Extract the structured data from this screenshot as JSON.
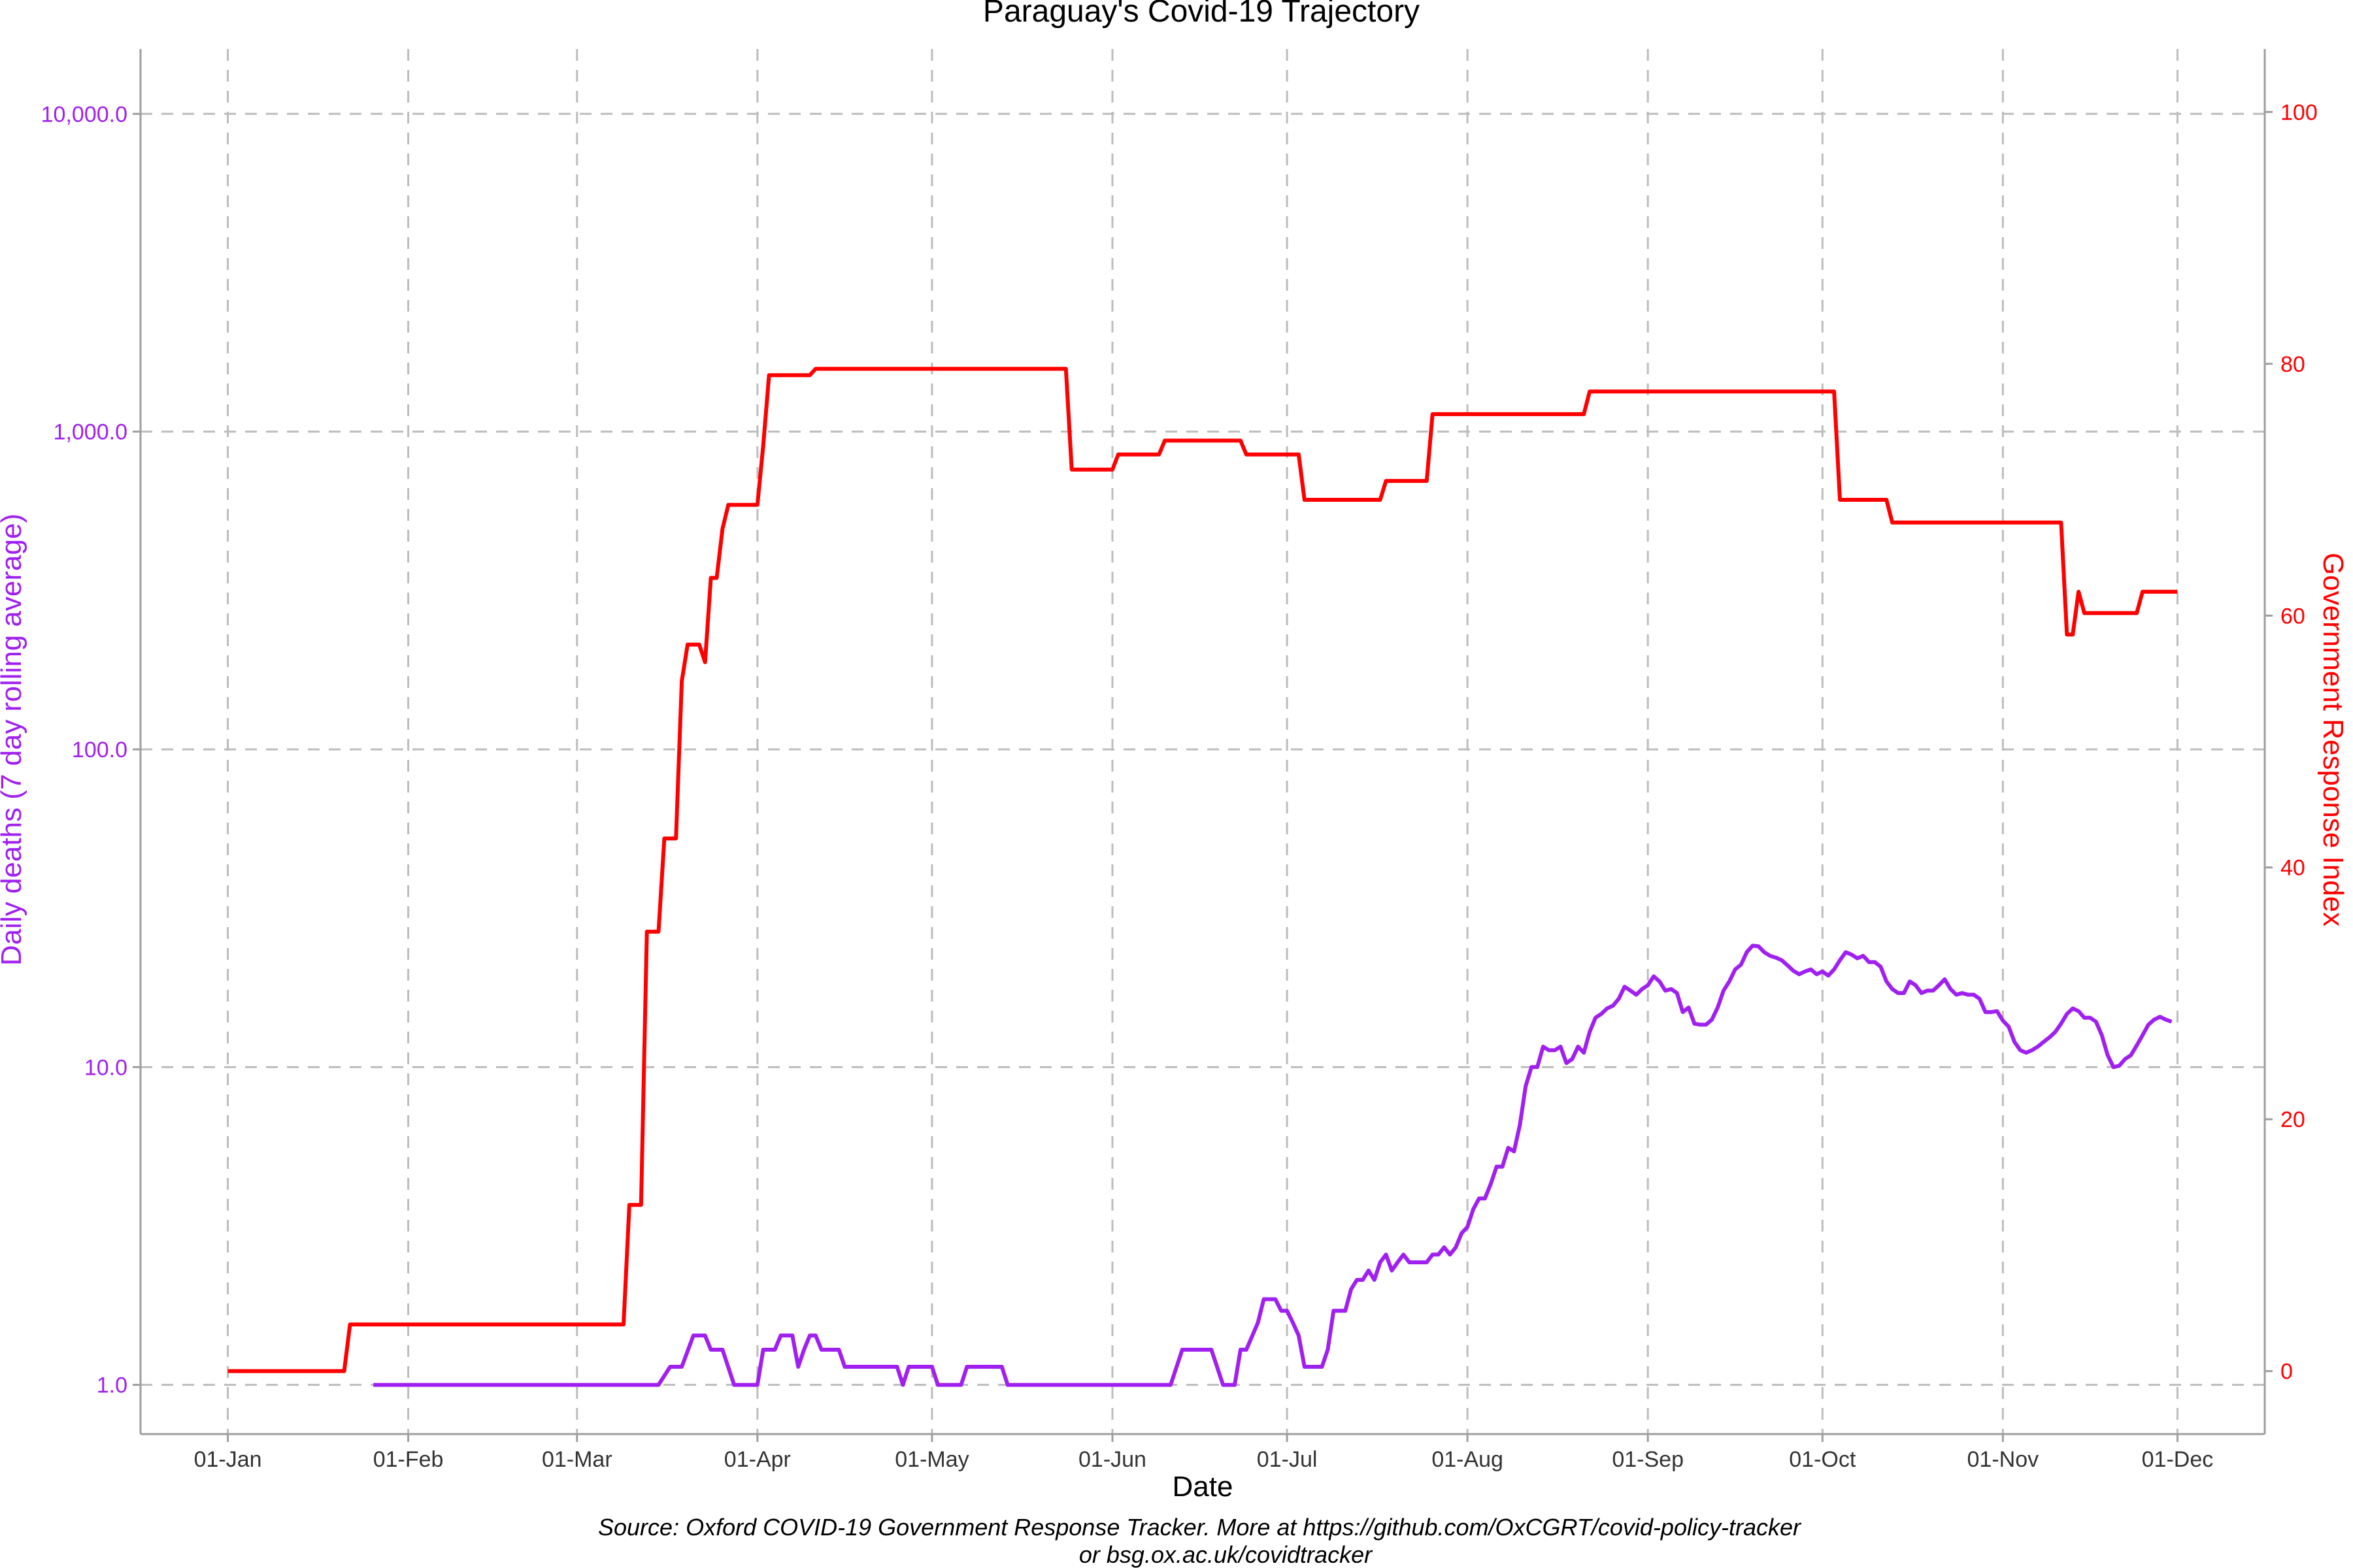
{
  "chart_data": {
    "type": "line",
    "title": "Paraguay's Covid-19 Trajectory",
    "xlabel": "Date",
    "ylabel_left": "Daily deaths (7 day rolling average)",
    "ylabel_right": "Government Response Index",
    "caption_line1": "Source: Oxford COVID-19 Government Response Tracker. More at https://github.com/OxCGRT/covid-policy-tracker",
    "caption_line2": "or bsg.ox.ac.uk/covidtracker",
    "x_ticks": [
      "01-Jan",
      "01-Feb",
      "01-Mar",
      "01-Apr",
      "01-May",
      "01-Jun",
      "01-Jul",
      "01-Aug",
      "01-Sep",
      "01-Oct",
      "01-Nov",
      "01-Dec"
    ],
    "y_left_scale": "log10",
    "y_left_ticks": [
      "1.0",
      "10.0",
      "100.0",
      "1,000.0",
      "10,000.0"
    ],
    "y_left_lim": [
      0.7,
      16000
    ],
    "y_right_ticks": [
      "0",
      "20",
      "40",
      "60",
      "80",
      "100"
    ],
    "y_right_lim": [
      -5,
      105
    ],
    "grid": true,
    "colors": {
      "deaths": "#a020f0",
      "response": "#ff0000",
      "grid": "#bdbdbd",
      "axis": "#9e9e9e"
    },
    "series": [
      {
        "name": "Daily deaths (7 day rolling average)",
        "axis": "left",
        "color": "#a020f0",
        "points": [
          [
            "2020-01-26",
            1.0
          ],
          [
            "2020-03-15",
            1.0
          ],
          [
            "2020-03-17",
            1.14
          ],
          [
            "2020-03-19",
            1.14
          ],
          [
            "2020-03-21",
            1.43
          ],
          [
            "2020-03-23",
            1.43
          ],
          [
            "2020-03-24",
            1.29
          ],
          [
            "2020-03-26",
            1.29
          ],
          [
            "2020-03-28",
            1.0
          ],
          [
            "2020-04-01",
            1.0
          ],
          [
            "2020-04-02",
            1.29
          ],
          [
            "2020-04-04",
            1.29
          ],
          [
            "2020-04-05",
            1.43
          ],
          [
            "2020-04-07",
            1.43
          ],
          [
            "2020-04-08",
            1.14
          ],
          [
            "2020-04-09",
            1.29
          ],
          [
            "2020-04-10",
            1.43
          ],
          [
            "2020-04-11",
            1.43
          ],
          [
            "2020-04-12",
            1.29
          ],
          [
            "2020-04-15",
            1.29
          ],
          [
            "2020-04-16",
            1.14
          ],
          [
            "2020-04-25",
            1.14
          ],
          [
            "2020-04-26",
            1.0
          ],
          [
            "2020-04-27",
            1.14
          ],
          [
            "2020-05-01",
            1.14
          ],
          [
            "2020-05-02",
            1.0
          ],
          [
            "2020-05-06",
            1.0
          ],
          [
            "2020-05-07",
            1.14
          ],
          [
            "2020-05-13",
            1.14
          ],
          [
            "2020-05-14",
            1.0
          ],
          [
            "2020-05-30",
            1.0
          ],
          [
            "2020-06-11",
            1.0
          ],
          [
            "2020-06-13",
            1.29
          ],
          [
            "2020-06-18",
            1.29
          ],
          [
            "2020-06-20",
            1.0
          ],
          [
            "2020-06-22",
            1.0
          ],
          [
            "2020-06-23",
            1.29
          ],
          [
            "2020-06-24",
            1.29
          ],
          [
            "2020-06-26",
            1.57
          ],
          [
            "2020-06-27",
            1.86
          ],
          [
            "2020-06-29",
            1.86
          ],
          [
            "2020-06-30",
            1.71
          ],
          [
            "2020-07-01",
            1.71
          ],
          [
            "2020-07-02",
            1.57
          ],
          [
            "2020-07-03",
            1.43
          ],
          [
            "2020-07-04",
            1.14
          ],
          [
            "2020-07-07",
            1.14
          ],
          [
            "2020-07-08",
            1.29
          ],
          [
            "2020-07-09",
            1.71
          ],
          [
            "2020-07-11",
            1.71
          ],
          [
            "2020-07-12",
            2.0
          ],
          [
            "2020-07-13",
            2.14
          ],
          [
            "2020-07-14",
            2.14
          ],
          [
            "2020-07-15",
            2.29
          ],
          [
            "2020-07-16",
            2.14
          ],
          [
            "2020-07-17",
            2.43
          ],
          [
            "2020-07-18",
            2.57
          ],
          [
            "2020-07-19",
            2.29
          ],
          [
            "2020-07-20",
            2.43
          ],
          [
            "2020-07-21",
            2.57
          ],
          [
            "2020-07-22",
            2.43
          ],
          [
            "2020-07-25",
            2.43
          ],
          [
            "2020-07-26",
            2.57
          ],
          [
            "2020-07-27",
            2.57
          ],
          [
            "2020-07-28",
            2.71
          ],
          [
            "2020-07-29",
            2.57
          ],
          [
            "2020-07-30",
            2.71
          ],
          [
            "2020-07-31",
            3.0
          ],
          [
            "2020-08-01",
            3.14
          ],
          [
            "2020-08-02",
            3.57
          ],
          [
            "2020-08-03",
            3.86
          ],
          [
            "2020-08-04",
            3.86
          ],
          [
            "2020-08-05",
            4.29
          ],
          [
            "2020-08-06",
            4.86
          ],
          [
            "2020-08-07",
            4.86
          ],
          [
            "2020-08-08",
            5.57
          ],
          [
            "2020-08-09",
            5.43
          ],
          [
            "2020-08-10",
            6.57
          ],
          [
            "2020-08-11",
            8.71
          ],
          [
            "2020-08-12",
            10.0
          ],
          [
            "2020-08-13",
            10.0
          ],
          [
            "2020-08-14",
            11.6
          ],
          [
            "2020-08-15",
            11.3
          ],
          [
            "2020-08-16",
            11.3
          ],
          [
            "2020-08-17",
            11.6
          ],
          [
            "2020-08-18",
            10.3
          ],
          [
            "2020-08-19",
            10.6
          ],
          [
            "2020-08-20",
            11.6
          ],
          [
            "2020-08-21",
            11.1
          ],
          [
            "2020-08-22",
            12.9
          ],
          [
            "2020-08-23",
            14.3
          ],
          [
            "2020-08-24",
            14.7
          ],
          [
            "2020-08-25",
            15.3
          ],
          [
            "2020-08-26",
            15.6
          ],
          [
            "2020-08-27",
            16.4
          ],
          [
            "2020-08-28",
            17.9
          ],
          [
            "2020-08-29",
            17.4
          ],
          [
            "2020-08-30",
            16.9
          ],
          [
            "2020-08-31",
            17.6
          ],
          [
            "2020-09-01",
            18.1
          ],
          [
            "2020-09-02",
            19.3
          ],
          [
            "2020-09-03",
            18.6
          ],
          [
            "2020-09-04",
            17.4
          ],
          [
            "2020-09-05",
            17.6
          ],
          [
            "2020-09-06",
            17.1
          ],
          [
            "2020-09-07",
            14.9
          ],
          [
            "2020-09-08",
            15.4
          ],
          [
            "2020-09-09",
            13.7
          ],
          [
            "2020-09-10",
            13.6
          ],
          [
            "2020-09-11",
            13.6
          ],
          [
            "2020-09-12",
            14.1
          ],
          [
            "2020-09-13",
            15.4
          ],
          [
            "2020-09-14",
            17.4
          ],
          [
            "2020-09-15",
            18.6
          ],
          [
            "2020-09-16",
            20.3
          ],
          [
            "2020-09-17",
            21.0
          ],
          [
            "2020-09-18",
            23.0
          ],
          [
            "2020-09-19",
            24.1
          ],
          [
            "2020-09-20",
            24.0
          ],
          [
            "2020-09-21",
            23.0
          ],
          [
            "2020-09-22",
            22.4
          ],
          [
            "2020-09-23",
            22.1
          ],
          [
            "2020-09-24",
            21.7
          ],
          [
            "2020-09-25",
            20.9
          ],
          [
            "2020-09-26",
            20.1
          ],
          [
            "2020-09-27",
            19.6
          ],
          [
            "2020-09-28",
            20.0
          ],
          [
            "2020-09-29",
            20.3
          ],
          [
            "2020-09-30",
            19.6
          ],
          [
            "2020-10-01",
            20.0
          ],
          [
            "2020-10-02",
            19.4
          ],
          [
            "2020-10-03",
            20.3
          ],
          [
            "2020-10-04",
            21.7
          ],
          [
            "2020-10-05",
            23.0
          ],
          [
            "2020-10-06",
            22.6
          ],
          [
            "2020-10-07",
            22.0
          ],
          [
            "2020-10-08",
            22.4
          ],
          [
            "2020-10-09",
            21.4
          ],
          [
            "2020-10-10",
            21.4
          ],
          [
            "2020-10-11",
            20.7
          ],
          [
            "2020-10-12",
            18.6
          ],
          [
            "2020-10-13",
            17.6
          ],
          [
            "2020-10-14",
            17.1
          ],
          [
            "2020-10-15",
            17.1
          ],
          [
            "2020-10-16",
            18.6
          ],
          [
            "2020-10-17",
            18.1
          ],
          [
            "2020-10-18",
            17.1
          ],
          [
            "2020-10-19",
            17.4
          ],
          [
            "2020-10-20",
            17.4
          ],
          [
            "2020-10-21",
            18.1
          ],
          [
            "2020-10-22",
            18.9
          ],
          [
            "2020-10-23",
            17.6
          ],
          [
            "2020-10-24",
            16.9
          ],
          [
            "2020-10-25",
            17.1
          ],
          [
            "2020-10-26",
            16.9
          ],
          [
            "2020-10-27",
            16.9
          ],
          [
            "2020-10-28",
            16.4
          ],
          [
            "2020-10-29",
            14.9
          ],
          [
            "2020-10-30",
            14.9
          ],
          [
            "2020-10-31",
            15.0
          ],
          [
            "2020-11-01",
            14.0
          ],
          [
            "2020-11-02",
            13.4
          ],
          [
            "2020-11-03",
            12.0
          ],
          [
            "2020-11-04",
            11.3
          ],
          [
            "2020-11-05",
            11.1
          ],
          [
            "2020-11-06",
            11.3
          ],
          [
            "2020-11-07",
            11.6
          ],
          [
            "2020-11-08",
            12.0
          ],
          [
            "2020-11-09",
            12.4
          ],
          [
            "2020-11-10",
            12.9
          ],
          [
            "2020-11-11",
            13.7
          ],
          [
            "2020-11-12",
            14.7
          ],
          [
            "2020-11-13",
            15.3
          ],
          [
            "2020-11-14",
            15.0
          ],
          [
            "2020-11-15",
            14.3
          ],
          [
            "2020-11-16",
            14.3
          ],
          [
            "2020-11-17",
            13.9
          ],
          [
            "2020-11-18",
            12.6
          ],
          [
            "2020-11-19",
            10.9
          ],
          [
            "2020-11-20",
            10.0
          ],
          [
            "2020-11-21",
            10.1
          ],
          [
            "2020-11-22",
            10.6
          ],
          [
            "2020-11-23",
            10.9
          ],
          [
            "2020-11-24",
            11.7
          ],
          [
            "2020-11-25",
            12.6
          ],
          [
            "2020-11-26",
            13.6
          ],
          [
            "2020-11-27",
            14.1
          ],
          [
            "2020-11-28",
            14.4
          ],
          [
            "2020-11-29",
            14.1
          ],
          [
            "2020-11-30",
            13.9
          ]
        ]
      },
      {
        "name": "Government Response Index",
        "axis": "right",
        "color": "#ff0000",
        "points": [
          [
            "2020-01-01",
            0.0
          ],
          [
            "2020-01-21",
            0.0
          ],
          [
            "2020-01-22",
            3.7
          ],
          [
            "2020-03-09",
            3.7
          ],
          [
            "2020-03-10",
            13.2
          ],
          [
            "2020-03-12",
            13.2
          ],
          [
            "2020-03-13",
            34.9
          ],
          [
            "2020-03-15",
            34.9
          ],
          [
            "2020-03-16",
            42.3
          ],
          [
            "2020-03-18",
            42.3
          ],
          [
            "2020-03-19",
            54.8
          ],
          [
            "2020-03-20",
            57.7
          ],
          [
            "2020-03-22",
            57.7
          ],
          [
            "2020-03-23",
            56.3
          ],
          [
            "2020-03-24",
            63.0
          ],
          [
            "2020-03-25",
            63.0
          ],
          [
            "2020-03-26",
            66.9
          ],
          [
            "2020-03-27",
            68.8
          ],
          [
            "2020-04-01",
            68.8
          ],
          [
            "2020-04-02",
            73.5
          ],
          [
            "2020-04-03",
            79.1
          ],
          [
            "2020-04-10",
            79.1
          ],
          [
            "2020-04-11",
            79.6
          ],
          [
            "2020-05-24",
            79.6
          ],
          [
            "2020-05-25",
            71.6
          ],
          [
            "2020-06-01",
            71.6
          ],
          [
            "2020-06-02",
            72.8
          ],
          [
            "2020-06-09",
            72.8
          ],
          [
            "2020-06-10",
            73.9
          ],
          [
            "2020-06-23",
            73.9
          ],
          [
            "2020-06-24",
            72.8
          ],
          [
            "2020-07-03",
            72.8
          ],
          [
            "2020-07-04",
            69.2
          ],
          [
            "2020-07-17",
            69.2
          ],
          [
            "2020-07-18",
            70.7
          ],
          [
            "2020-07-25",
            70.7
          ],
          [
            "2020-07-26",
            76.0
          ],
          [
            "2020-08-21",
            76.0
          ],
          [
            "2020-08-22",
            77.8
          ],
          [
            "2020-10-03",
            77.8
          ],
          [
            "2020-10-04",
            69.2
          ],
          [
            "2020-10-12",
            69.2
          ],
          [
            "2020-10-13",
            67.4
          ],
          [
            "2020-11-11",
            67.4
          ],
          [
            "2020-11-12",
            58.5
          ],
          [
            "2020-11-13",
            58.5
          ],
          [
            "2020-11-14",
            61.9
          ],
          [
            "2020-11-15",
            60.2
          ],
          [
            "2020-11-24",
            60.2
          ],
          [
            "2020-11-25",
            61.9
          ],
          [
            "2020-12-01",
            61.9
          ]
        ]
      }
    ]
  }
}
